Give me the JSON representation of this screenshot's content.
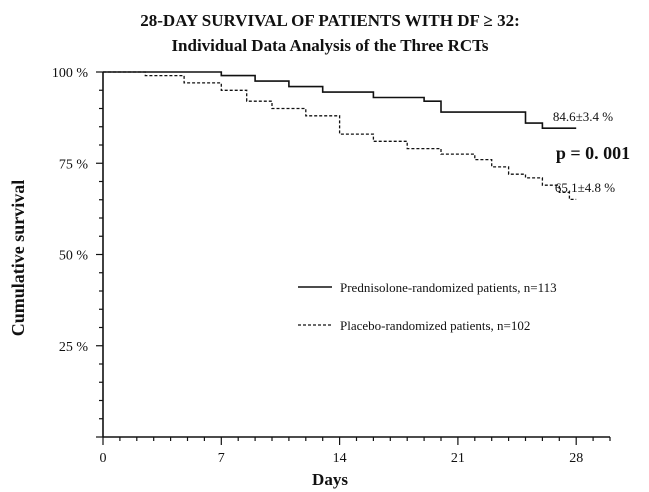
{
  "chart_data": {
    "type": "line",
    "title": "28-DAY SURVIVAL OF PATIENTS WITH DF ≥ 32:",
    "subtitle": "Individual Data Analysis of the Three RCTs",
    "xlabel": "Days",
    "ylabel": "Cumulative survival",
    "xlim": [
      0,
      30
    ],
    "ylim": [
      0,
      100
    ],
    "x_ticks": [
      "0",
      "7",
      "14",
      "21",
      "28"
    ],
    "y_ticks": [
      "100 %",
      "75 %",
      "50 %",
      "25 %"
    ],
    "series": [
      {
        "name": "Prednisolone-randomized patients, n=113",
        "style": "solid",
        "color": "#111111",
        "points": [
          [
            0,
            100
          ],
          [
            7,
            100
          ],
          [
            7,
            99
          ],
          [
            9,
            99
          ],
          [
            9,
            97.5
          ],
          [
            11,
            97.5
          ],
          [
            11,
            96
          ],
          [
            13,
            96
          ],
          [
            13,
            94.5
          ],
          [
            16,
            94.5
          ],
          [
            16,
            93
          ],
          [
            19,
            93
          ],
          [
            19,
            92
          ],
          [
            20,
            92
          ],
          [
            20,
            89
          ],
          [
            25,
            89
          ],
          [
            25,
            86
          ],
          [
            26,
            86
          ],
          [
            26,
            84.6
          ],
          [
            28,
            84.6
          ]
        ],
        "end_label": "84.6±3.4 %"
      },
      {
        "name": "Placebo-randomized patients,  n=102",
        "style": "dashed",
        "color": "#111111",
        "points": [
          [
            0,
            100
          ],
          [
            2.5,
            100
          ],
          [
            2.5,
            99
          ],
          [
            4.8,
            99
          ],
          [
            4.8,
            97
          ],
          [
            7,
            97
          ],
          [
            7,
            95
          ],
          [
            8.5,
            95
          ],
          [
            8.5,
            92
          ],
          [
            10,
            92
          ],
          [
            10,
            90
          ],
          [
            12,
            90
          ],
          [
            12,
            88
          ],
          [
            14,
            88
          ],
          [
            14,
            83
          ],
          [
            16,
            83
          ],
          [
            16,
            81
          ],
          [
            18,
            81
          ],
          [
            18,
            79
          ],
          [
            20,
            79
          ],
          [
            20,
            77.5
          ],
          [
            22,
            77.5
          ],
          [
            22,
            76
          ],
          [
            23,
            76
          ],
          [
            23,
            74
          ],
          [
            24,
            74
          ],
          [
            24,
            72
          ],
          [
            25,
            72
          ],
          [
            25,
            71
          ],
          [
            26,
            71
          ],
          [
            26,
            69
          ],
          [
            27,
            69
          ],
          [
            27,
            67
          ],
          [
            27.6,
            67
          ],
          [
            27.6,
            65.1
          ],
          [
            28,
            65.1
          ]
        ],
        "end_label": "65.1±4.8 %"
      }
    ],
    "annotations": [
      {
        "text": "p = 0. 001"
      }
    ],
    "legend_position": "center-right",
    "grid": false
  }
}
